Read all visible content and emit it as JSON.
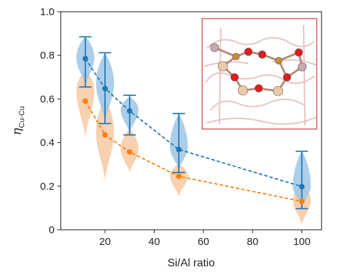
{
  "chart_data": {
    "type": "scatter",
    "xlabel": "Si/Al ratio",
    "ylabel": {
      "main": "η",
      "sub": "Cu-Cu"
    },
    "xlim": [
      2,
      108
    ],
    "ylim": [
      0,
      1.0
    ],
    "xticks": [
      20,
      40,
      60,
      80,
      100
    ],
    "yticks": [
      0,
      0.2,
      0.4,
      0.6,
      0.8,
      1.0
    ],
    "xtick_labels": [
      "20",
      "40",
      "60",
      "80",
      "100"
    ],
    "ytick_labels": [
      "0",
      "0.2",
      "0.4",
      "0.6",
      "0.8",
      "1.0"
    ],
    "grid": false,
    "legend": "none",
    "series": [
      {
        "color": "#1f77b4",
        "violin_color": "#9ec5e4",
        "x": [
          12,
          20,
          30,
          50,
          100
        ],
        "y": [
          0.785,
          0.648,
          0.545,
          0.368,
          0.198
        ],
        "err_low": [
          0.655,
          0.487,
          0.435,
          0.263,
          0.097
        ],
        "err_high": [
          0.885,
          0.812,
          0.617,
          0.533,
          0.36
        ],
        "violin_span": [
          [
            0.655,
            0.885
          ],
          [
            0.49,
            0.81
          ],
          [
            0.44,
            0.61
          ],
          [
            0.27,
            0.53
          ],
          [
            0.1,
            0.36
          ]
        ],
        "violin_peak": [
          0.79,
          0.67,
          0.55,
          0.38,
          0.2
        ]
      },
      {
        "color": "#ff7f0e",
        "violin_color": "#f6c9a2",
        "x": [
          12,
          20,
          30,
          50,
          100
        ],
        "y": [
          0.59,
          0.435,
          0.357,
          0.245,
          0.13
        ],
        "violin_span": [
          [
            0.42,
            0.73
          ],
          [
            0.22,
            0.6
          ],
          [
            0.26,
            0.46
          ],
          [
            0.15,
            0.3
          ],
          [
            0.02,
            0.2
          ]
        ],
        "violin_peak": [
          0.64,
          0.45,
          0.37,
          0.25,
          0.14
        ]
      }
    ],
    "inset": {
      "description": "zeolite ring structure",
      "border_color": "#d95f5f"
    }
  }
}
